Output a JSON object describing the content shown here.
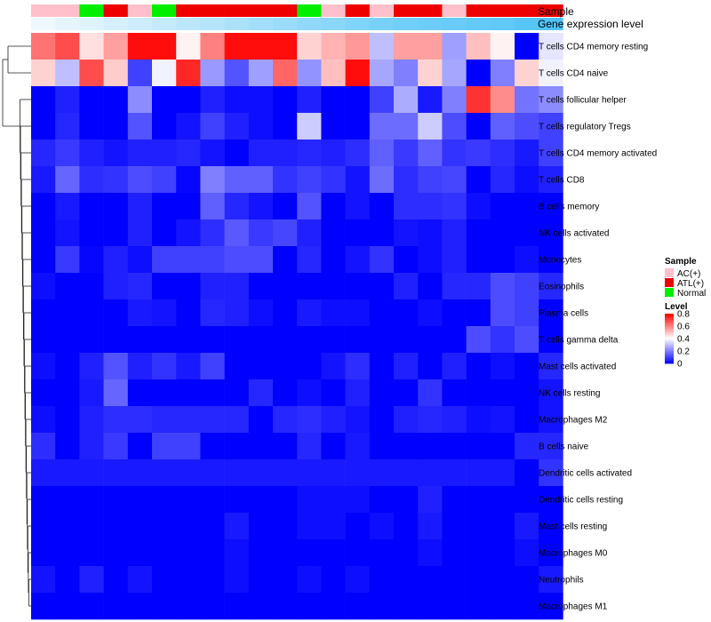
{
  "chart_data": {
    "type": "heatmap",
    "title": "",
    "annotation_labels": {
      "sample": "Sample",
      "expression": "Gene expression level"
    },
    "columns": 22,
    "sample_groups": [
      "AC",
      "AC",
      "Normal",
      "ATL",
      "AC",
      "Normal",
      "ATL",
      "ATL",
      "ATL",
      "ATL",
      "ATL",
      "Normal",
      "AC",
      "ATL",
      "AC",
      "ATL",
      "ATL",
      "AC",
      "ATL",
      "ATL",
      "ATL",
      "ATL"
    ],
    "expression_level": [
      0.05,
      0.1,
      0.15,
      0.2,
      0.25,
      0.3,
      0.35,
      0.4,
      0.45,
      0.5,
      0.55,
      0.6,
      0.65,
      0.7,
      0.75,
      0.8,
      0.82,
      0.85,
      0.88,
      0.9,
      0.95,
      1.0
    ],
    "rows": [
      "T cells CD4 memory resting",
      "T cells CD4 naive",
      "T cells follicular helper",
      "T cells regulatory  Tregs",
      "T cells CD4 memory activated",
      "T cells CD8",
      "B cells memory",
      "NK cells activated",
      "Monocytes",
      "Eosinophils",
      "Plasma cells",
      "T cells gamma delta",
      "Mast cells activated",
      "NK cells resting",
      "Macrophages M2",
      "B cells naive",
      "Dendritic cells activated",
      "Dendritic cells resting",
      "Mast cells resting",
      "Macrophages M0",
      "Neutrophils",
      "Macrophages M1"
    ],
    "values": [
      [
        0.62,
        0.68,
        0.45,
        0.55,
        0.78,
        0.78,
        0.42,
        0.6,
        0.78,
        0.78,
        0.78,
        0.47,
        0.52,
        0.56,
        0.3,
        0.55,
        0.55,
        0.25,
        0.5,
        0.42,
        0.0,
        0.36
      ],
      [
        0.47,
        0.3,
        0.68,
        0.48,
        0.1,
        0.38,
        0.74,
        0.24,
        0.13,
        0.25,
        0.64,
        0.23,
        0.5,
        0.78,
        0.26,
        0.2,
        0.47,
        0.26,
        0.0,
        0.2,
        0.47,
        0.38
      ],
      [
        0.0,
        0.05,
        0.0,
        0.0,
        0.22,
        0.0,
        0.0,
        0.05,
        0.02,
        0.02,
        0.0,
        0.05,
        0.0,
        0.0,
        0.1,
        0.27,
        0.04,
        0.2,
        0.72,
        0.58,
        0.18,
        0.22
      ],
      [
        0.0,
        0.06,
        0.0,
        0.0,
        0.13,
        0.0,
        0.03,
        0.1,
        0.05,
        0.02,
        0.0,
        0.32,
        0.0,
        0.0,
        0.17,
        0.17,
        0.32,
        0.12,
        0.0,
        0.15,
        0.12,
        0.1
      ],
      [
        0.06,
        0.09,
        0.05,
        0.03,
        0.05,
        0.05,
        0.06,
        0.03,
        0.0,
        0.05,
        0.05,
        0.06,
        0.05,
        0.07,
        0.15,
        0.09,
        0.15,
        0.08,
        0.09,
        0.07,
        0.04,
        0.1
      ],
      [
        0.04,
        0.16,
        0.07,
        0.08,
        0.12,
        0.1,
        0.01,
        0.2,
        0.15,
        0.15,
        0.08,
        0.1,
        0.08,
        0.03,
        0.17,
        0.07,
        0.1,
        0.11,
        0.0,
        0.06,
        0.02,
        0.05
      ],
      [
        0.0,
        0.04,
        0.0,
        0.0,
        0.05,
        0.0,
        0.0,
        0.15,
        0.06,
        0.03,
        0.0,
        0.13,
        0.0,
        0.03,
        0.0,
        0.07,
        0.07,
        0.08,
        0.02,
        0.0,
        0.0,
        0.0
      ],
      [
        0.0,
        0.03,
        0.0,
        0.0,
        0.05,
        0.0,
        0.03,
        0.07,
        0.14,
        0.09,
        0.11,
        0.05,
        0.0,
        0.0,
        0.0,
        0.03,
        0.02,
        0.05,
        0.0,
        0.0,
        0.0,
        0.0
      ],
      [
        0.0,
        0.09,
        0.01,
        0.05,
        0.02,
        0.1,
        0.1,
        0.1,
        0.12,
        0.12,
        0.0,
        0.06,
        0.0,
        0.03,
        0.08,
        0.0,
        0.02,
        0.05,
        0.0,
        0.0,
        0.02,
        0.0
      ],
      [
        0.02,
        0.0,
        0.0,
        0.05,
        0.06,
        0.0,
        0.0,
        0.05,
        0.05,
        0.0,
        0.0,
        0.0,
        0.0,
        0.0,
        0.0,
        0.05,
        0.0,
        0.06,
        0.06,
        0.12,
        0.1,
        0.06
      ],
      [
        0.0,
        0.0,
        0.0,
        0.0,
        0.04,
        0.03,
        0.0,
        0.06,
        0.05,
        0.02,
        0.0,
        0.04,
        0.02,
        0.02,
        0.0,
        0.0,
        0.02,
        0.0,
        0.0,
        0.12,
        0.1,
        0.0
      ],
      [
        0.0,
        0.0,
        0.0,
        0.0,
        0.0,
        0.0,
        0.0,
        0.0,
        0.0,
        0.0,
        0.0,
        0.0,
        0.0,
        0.0,
        0.0,
        0.0,
        0.0,
        0.0,
        0.12,
        0.08,
        0.12,
        0.0
      ],
      [
        0.02,
        0.0,
        0.05,
        0.13,
        0.05,
        0.08,
        0.04,
        0.1,
        0.0,
        0.0,
        0.0,
        0.0,
        0.03,
        0.07,
        0.0,
        0.05,
        0.0,
        0.05,
        0.0,
        0.02,
        0.0,
        0.06
      ],
      [
        0.0,
        0.0,
        0.04,
        0.16,
        0.0,
        0.0,
        0.0,
        0.0,
        0.0,
        0.06,
        0.0,
        0.02,
        0.0,
        0.05,
        0.0,
        0.0,
        0.08,
        0.0,
        0.0,
        0.0,
        0.0,
        0.03
      ],
      [
        0.02,
        0.0,
        0.05,
        0.07,
        0.07,
        0.06,
        0.06,
        0.06,
        0.06,
        0.0,
        0.06,
        0.07,
        0.05,
        0.03,
        0.0,
        0.05,
        0.06,
        0.05,
        0.02,
        0.03,
        0.0,
        0.03
      ],
      [
        0.07,
        0.0,
        0.05,
        0.09,
        0.0,
        0.1,
        0.1,
        0.0,
        0.0,
        0.0,
        0.0,
        0.06,
        0.0,
        0.04,
        0.0,
        0.0,
        0.0,
        0.0,
        0.0,
        0.0,
        0.06,
        0.06
      ],
      [
        0.04,
        0.04,
        0.04,
        0.04,
        0.04,
        0.04,
        0.04,
        0.04,
        0.04,
        0.04,
        0.04,
        0.04,
        0.04,
        0.04,
        0.04,
        0.04,
        0.04,
        0.04,
        0.04,
        0.04,
        0.0,
        0.08
      ],
      [
        0.0,
        0.0,
        0.0,
        0.0,
        0.0,
        0.0,
        0.0,
        0.0,
        0.0,
        0.0,
        0.0,
        0.02,
        0.02,
        0.02,
        0.0,
        0.0,
        0.05,
        0.0,
        0.0,
        0.0,
        0.0,
        0.0
      ],
      [
        0.0,
        0.0,
        0.0,
        0.0,
        0.0,
        0.0,
        0.0,
        0.0,
        0.04,
        0.0,
        0.0,
        0.02,
        0.02,
        0.0,
        0.02,
        0.0,
        0.04,
        0.0,
        0.0,
        0.0,
        0.04,
        0.0
      ],
      [
        0.0,
        0.0,
        0.0,
        0.0,
        0.0,
        0.0,
        0.0,
        0.0,
        0.02,
        0.0,
        0.0,
        0.0,
        0.0,
        0.0,
        0.0,
        0.0,
        0.02,
        0.0,
        0.0,
        0.0,
        0.02,
        0.0
      ],
      [
        0.03,
        0.0,
        0.05,
        0.0,
        0.03,
        0.0,
        0.0,
        0.0,
        0.02,
        0.0,
        0.0,
        0.02,
        0.0,
        0.02,
        0.0,
        0.0,
        0.0,
        0.0,
        0.0,
        0.0,
        0.0,
        0.04
      ],
      [
        0.0,
        0.0,
        0.0,
        0.0,
        0.0,
        0.0,
        0.0,
        0.0,
        0.0,
        0.0,
        0.0,
        0.0,
        0.0,
        0.0,
        0.0,
        0.0,
        0.0,
        0.0,
        0.0,
        0.0,
        0.0,
        0.0
      ]
    ],
    "level_range": [
      0,
      0.8
    ],
    "legend": {
      "sample_title": "Sample",
      "sample_items": [
        {
          "label": "AC(+)",
          "key": "AC",
          "color": "#ffc0cb"
        },
        {
          "label": "ATL(+)",
          "key": "ATL",
          "color": "#ee0000"
        },
        {
          "label": "Normal",
          "key": "Normal",
          "color": "#00ee00"
        }
      ],
      "level_title": "Level",
      "level_ticks": [
        "0.8",
        "0.6",
        "0.4",
        "0.2",
        "0"
      ],
      "level_tick_values": [
        0.8,
        0.6,
        0.4,
        0.2,
        0
      ],
      "colors": {
        "low": "#0000ff",
        "mid": "#ffffff",
        "high": "#ff0000"
      },
      "expression_colors": {
        "low": "#f7fbfd",
        "high": "#4fc3f7"
      }
    }
  }
}
